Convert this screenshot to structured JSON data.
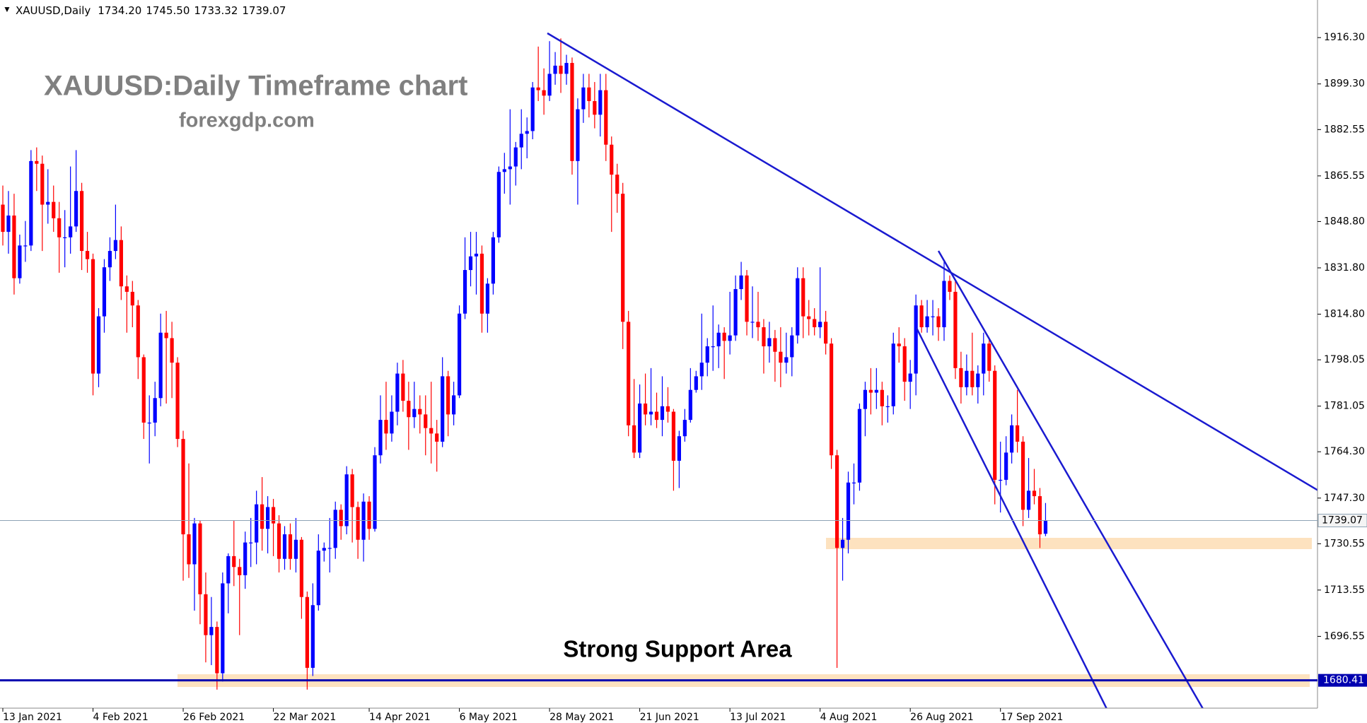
{
  "chart_data": {
    "type": "candlestick",
    "title": "XAUUSD:Daily Timeframe chart",
    "subtitle": "forexgdp.com",
    "annotation": "Strong Support Area",
    "header": {
      "symbol": "XAUUSD,Daily",
      "value_labels": [
        "1734.20",
        "1745.50",
        "1733.32",
        "1739.07"
      ]
    },
    "up_color": "#0000ff",
    "down_color": "#ff0000",
    "ylim": [
      1670.2,
      1930.1
    ],
    "yticks": [
      {
        "value": 1916.3,
        "label": "1916.30"
      },
      {
        "value": 1899.3,
        "label": "1899.30"
      },
      1882.55,
      1865.55,
      {
        "value": 1848.8,
        "label": "1848.80"
      },
      {
        "value": 1831.8,
        "label": "1831.80"
      },
      {
        "value": 1814.8,
        "label": "1814.80"
      },
      1798.05,
      1781.05,
      {
        "value": 1764.3,
        "label": "1764.30"
      },
      {
        "value": 1747.3,
        "label": "1747.30"
      },
      1730.55,
      1713.55,
      1696.55
    ],
    "support_level": 1680.41,
    "categories": [
      "13 Jan 2021",
      null,
      null,
      null,
      null,
      null,
      null,
      null,
      null,
      null,
      null,
      null,
      null,
      null,
      null,
      null,
      "4 Feb 2021",
      null,
      null,
      null,
      null,
      null,
      null,
      null,
      null,
      null,
      null,
      null,
      null,
      null,
      null,
      null,
      "26 Feb 2021",
      null,
      null,
      null,
      null,
      null,
      null,
      null,
      null,
      null,
      null,
      null,
      null,
      null,
      null,
      null,
      "22 Mar 2021",
      null,
      null,
      null,
      null,
      null,
      null,
      null,
      null,
      null,
      null,
      null,
      null,
      null,
      null,
      null,
      null,
      "14 Apr 2021",
      null,
      null,
      null,
      null,
      null,
      null,
      null,
      null,
      null,
      null,
      null,
      null,
      null,
      null,
      null,
      "6 May 2021",
      null,
      null,
      null,
      null,
      null,
      null,
      null,
      null,
      null,
      null,
      null,
      null,
      null,
      null,
      null,
      "28 May 2021",
      null,
      null,
      null,
      null,
      null,
      null,
      null,
      null,
      null,
      null,
      null,
      null,
      null,
      null,
      null,
      "21 Jun 2021",
      null,
      null,
      null,
      null,
      null,
      null,
      null,
      null,
      null,
      null,
      null,
      null,
      null,
      null,
      null,
      "13 Jul 2021",
      null,
      null,
      null,
      null,
      null,
      null,
      null,
      null,
      null,
      null,
      null,
      null,
      null,
      null,
      null,
      "4 Aug 2021",
      null,
      null,
      null,
      null,
      null,
      null,
      null,
      null,
      null,
      null,
      null,
      null,
      null,
      null,
      null,
      "26 Aug 2021",
      null,
      null,
      null,
      null,
      null,
      null,
      null,
      null,
      null,
      null,
      null,
      null,
      null,
      null,
      null,
      "17 Sep 2021",
      null,
      null,
      null,
      null,
      null,
      null,
      null,
      null
    ],
    "ohlc": [
      [
        1855,
        1862,
        1840,
        1845
      ],
      [
        1845,
        1860,
        1837,
        1851
      ],
      [
        1851,
        1859,
        1822,
        1828
      ],
      [
        1828,
        1844,
        1826,
        1840
      ],
      [
        1840,
        1849,
        1834,
        1840
      ],
      [
        1840,
        1875,
        1838,
        1871
      ],
      [
        1871,
        1876,
        1860,
        1870
      ],
      [
        1870,
        1873,
        1838,
        1855
      ],
      [
        1855,
        1868,
        1848,
        1856
      ],
      [
        1856,
        1862,
        1845,
        1850
      ],
      [
        1850,
        1856,
        1830,
        1843
      ],
      [
        1843,
        1853,
        1832,
        1843
      ],
      [
        1843,
        1869,
        1837,
        1847
      ],
      [
        1847,
        1875,
        1845,
        1860
      ],
      [
        1860,
        1863,
        1831,
        1838
      ],
      [
        1838,
        1845,
        1830,
        1835
      ],
      [
        1835,
        1837,
        1785,
        1793
      ],
      [
        1793,
        1817,
        1788,
        1814
      ],
      [
        1814,
        1835,
        1808,
        1832
      ],
      [
        1832,
        1843,
        1827,
        1838
      ],
      [
        1838,
        1855,
        1835,
        1842
      ],
      [
        1842,
        1847,
        1820,
        1825
      ],
      [
        1825,
        1829,
        1808,
        1823
      ],
      [
        1823,
        1827,
        1810,
        1818
      ],
      [
        1818,
        1820,
        1791,
        1799
      ],
      [
        1799,
        1800,
        1769,
        1775
      ],
      [
        1775,
        1785,
        1760,
        1775
      ],
      [
        1775,
        1790,
        1770,
        1784
      ],
      [
        1784,
        1815,
        1781,
        1808
      ],
      [
        1808,
        1816,
        1782,
        1806
      ],
      [
        1806,
        1812,
        1784,
        1797
      ],
      [
        1797,
        1799,
        1766,
        1769
      ],
      [
        1769,
        1772,
        1717,
        1734
      ],
      [
        1734,
        1760,
        1718,
        1723
      ],
      [
        1723,
        1740,
        1706,
        1738
      ],
      [
        1738,
        1739,
        1701,
        1712
      ],
      [
        1712,
        1720,
        1687,
        1697
      ],
      [
        1697,
        1711,
        1686,
        1700
      ],
      [
        1700,
        1702,
        1677,
        1683
      ],
      [
        1683,
        1720,
        1680,
        1716
      ],
      [
        1716,
        1727,
        1705,
        1726
      ],
      [
        1726,
        1739,
        1715,
        1722
      ],
      [
        1722,
        1725,
        1697,
        1719
      ],
      [
        1719,
        1735,
        1714,
        1731
      ],
      [
        1731,
        1740,
        1722,
        1731
      ],
      [
        1731,
        1750,
        1723,
        1745
      ],
      [
        1745,
        1755,
        1728,
        1736
      ],
      [
        1736,
        1748,
        1727,
        1744
      ],
      [
        1744,
        1747,
        1726,
        1738
      ],
      [
        1738,
        1741,
        1720,
        1725
      ],
      [
        1725,
        1737,
        1721,
        1734
      ],
      [
        1734,
        1738,
        1721,
        1725
      ],
      [
        1725,
        1740,
        1720,
        1732
      ],
      [
        1732,
        1733,
        1703,
        1711
      ],
      [
        1711,
        1713,
        1677,
        1685
      ],
      [
        1685,
        1716,
        1682,
        1708
      ],
      [
        1708,
        1734,
        1706,
        1728
      ],
      [
        1728,
        1731,
        1724,
        1729
      ],
      [
        1729,
        1740,
        1720,
        1729
      ],
      [
        1729,
        1746,
        1725,
        1743
      ],
      [
        1743,
        1745,
        1732,
        1737
      ],
      [
        1737,
        1759,
        1734,
        1756
      ],
      [
        1756,
        1758,
        1731,
        1744
      ],
      [
        1744,
        1746,
        1725,
        1732
      ],
      [
        1732,
        1749,
        1724,
        1746
      ],
      [
        1746,
        1748,
        1732,
        1736
      ],
      [
        1736,
        1766,
        1735,
        1763
      ],
      [
        1763,
        1785,
        1760,
        1776
      ],
      [
        1776,
        1790,
        1765,
        1771
      ],
      [
        1771,
        1785,
        1768,
        1779
      ],
      [
        1779,
        1797,
        1774,
        1793
      ],
      [
        1793,
        1798,
        1779,
        1783
      ],
      [
        1783,
        1790,
        1765,
        1777
      ],
      [
        1777,
        1790,
        1773,
        1780
      ],
      [
        1780,
        1785,
        1771,
        1778
      ],
      [
        1778,
        1785,
        1763,
        1773
      ],
      [
        1773,
        1790,
        1760,
        1771
      ],
      [
        1771,
        1776,
        1757,
        1768
      ],
      [
        1768,
        1799,
        1766,
        1792
      ],
      [
        1792,
        1794,
        1770,
        1778
      ],
      [
        1778,
        1790,
        1774,
        1785
      ],
      [
        1785,
        1818,
        1784,
        1815
      ],
      [
        1815,
        1843,
        1813,
        1831
      ],
      [
        1831,
        1845,
        1825,
        1836
      ],
      [
        1836,
        1845,
        1822,
        1837
      ],
      [
        1837,
        1840,
        1808,
        1815
      ],
      [
        1815,
        1828,
        1808,
        1826
      ],
      [
        1826,
        1845,
        1822,
        1843
      ],
      [
        1843,
        1869,
        1841,
        1867
      ],
      [
        1867,
        1874,
        1859,
        1868
      ],
      [
        1868,
        1890,
        1855,
        1869
      ],
      [
        1869,
        1878,
        1862,
        1876
      ],
      [
        1876,
        1890,
        1868,
        1881
      ],
      [
        1881,
        1887,
        1872,
        1882
      ],
      [
        1882,
        1900,
        1879,
        1898
      ],
      [
        1898,
        1913,
        1893,
        1897
      ],
      [
        1897,
        1905,
        1888,
        1895
      ],
      [
        1895,
        1915,
        1893,
        1903
      ],
      [
        1903,
        1911,
        1899,
        1906
      ],
      [
        1906,
        1916,
        1896,
        1903
      ],
      [
        1903,
        1910,
        1899,
        1907
      ],
      [
        1907,
        1909,
        1866,
        1871
      ],
      [
        1871,
        1894,
        1855,
        1890
      ],
      [
        1890,
        1903,
        1885,
        1898
      ],
      [
        1898,
        1903,
        1887,
        1893
      ],
      [
        1893,
        1900,
        1883,
        1888
      ],
      [
        1888,
        1903,
        1880,
        1897
      ],
      [
        1897,
        1903,
        1871,
        1877
      ],
      [
        1877,
        1880,
        1845,
        1866
      ],
      [
        1866,
        1870,
        1852,
        1859
      ],
      [
        1859,
        1863,
        1802,
        1812
      ],
      [
        1812,
        1816,
        1770,
        1774
      ],
      [
        1774,
        1791,
        1762,
        1764
      ],
      [
        1764,
        1789,
        1762,
        1782
      ],
      [
        1782,
        1793,
        1774,
        1778
      ],
      [
        1778,
        1795,
        1774,
        1779
      ],
      [
        1779,
        1786,
        1773,
        1776
      ],
      [
        1776,
        1792,
        1770,
        1781
      ],
      [
        1781,
        1788,
        1775,
        1779
      ],
      [
        1779,
        1780,
        1750,
        1761
      ],
      [
        1761,
        1772,
        1751,
        1770
      ],
      [
        1770,
        1780,
        1768,
        1776
      ],
      [
        1776,
        1795,
        1775,
        1787
      ],
      [
        1787,
        1794,
        1786,
        1792
      ],
      [
        1792,
        1815,
        1787,
        1797
      ],
      [
        1797,
        1806,
        1792,
        1803
      ],
      [
        1803,
        1818,
        1794,
        1803
      ],
      [
        1803,
        1811,
        1795,
        1808
      ],
      [
        1808,
        1810,
        1791,
        1805
      ],
      [
        1805,
        1823,
        1800,
        1807
      ],
      [
        1807,
        1829,
        1805,
        1824
      ],
      [
        1824,
        1834,
        1820,
        1829
      ],
      [
        1829,
        1831,
        1807,
        1812
      ],
      [
        1812,
        1825,
        1806,
        1812
      ],
      [
        1812,
        1823,
        1805,
        1810
      ],
      [
        1810,
        1813,
        1793,
        1803
      ],
      [
        1803,
        1812,
        1797,
        1806
      ],
      [
        1806,
        1809,
        1790,
        1801
      ],
      [
        1801,
        1810,
        1788,
        1797
      ],
      [
        1797,
        1808,
        1793,
        1799
      ],
      [
        1799,
        1810,
        1792,
        1807
      ],
      [
        1807,
        1832,
        1804,
        1828
      ],
      [
        1828,
        1832,
        1806,
        1814
      ],
      [
        1814,
        1820,
        1807,
        1813
      ],
      [
        1813,
        1817,
        1807,
        1810
      ],
      [
        1810,
        1832,
        1806,
        1812
      ],
      [
        1812,
        1816,
        1800,
        1804
      ],
      [
        1804,
        1806,
        1758,
        1763
      ],
      [
        1763,
        1765,
        1685,
        1729
      ],
      [
        1729,
        1740,
        1717,
        1732
      ],
      [
        1732,
        1757,
        1727,
        1753
      ],
      [
        1753,
        1760,
        1745,
        1753
      ],
      [
        1753,
        1782,
        1750,
        1780
      ],
      [
        1780,
        1790,
        1770,
        1787
      ],
      [
        1787,
        1795,
        1778,
        1786
      ],
      [
        1786,
        1795,
        1780,
        1787
      ],
      [
        1787,
        1790,
        1774,
        1781
      ],
      [
        1781,
        1785,
        1775,
        1781
      ],
      [
        1781,
        1808,
        1778,
        1804
      ],
      [
        1804,
        1810,
        1797,
        1803
      ],
      [
        1803,
        1806,
        1783,
        1790
      ],
      [
        1790,
        1798,
        1780,
        1793
      ],
      [
        1793,
        1822,
        1785,
        1818
      ],
      [
        1818,
        1820,
        1808,
        1810
      ],
      [
        1810,
        1820,
        1808,
        1814
      ],
      [
        1814,
        1820,
        1807,
        1814
      ],
      [
        1814,
        1817,
        1805,
        1810
      ],
      [
        1810,
        1834,
        1805,
        1827
      ],
      [
        1827,
        1829,
        1820,
        1823
      ],
      [
        1823,
        1827,
        1791,
        1795
      ],
      [
        1795,
        1801,
        1782,
        1788
      ],
      [
        1788,
        1800,
        1785,
        1794
      ],
      [
        1794,
        1808,
        1785,
        1788
      ],
      [
        1788,
        1796,
        1782,
        1793
      ],
      [
        1793,
        1808,
        1785,
        1804
      ],
      [
        1804,
        1806,
        1790,
        1794
      ],
      [
        1794,
        1796,
        1745,
        1754
      ],
      [
        1754,
        1768,
        1742,
        1754
      ],
      [
        1754,
        1770,
        1752,
        1764
      ],
      [
        1764,
        1778,
        1760,
        1774
      ],
      [
        1774,
        1787,
        1764,
        1768
      ],
      [
        1768,
        1770,
        1737,
        1743
      ],
      [
        1743,
        1762,
        1740,
        1750
      ],
      [
        1750,
        1758,
        1745,
        1748
      ],
      [
        1748,
        1751,
        1729,
        1734
      ],
      [
        1734.2,
        1745.5,
        1733.32,
        1739.07
      ]
    ]
  }
}
